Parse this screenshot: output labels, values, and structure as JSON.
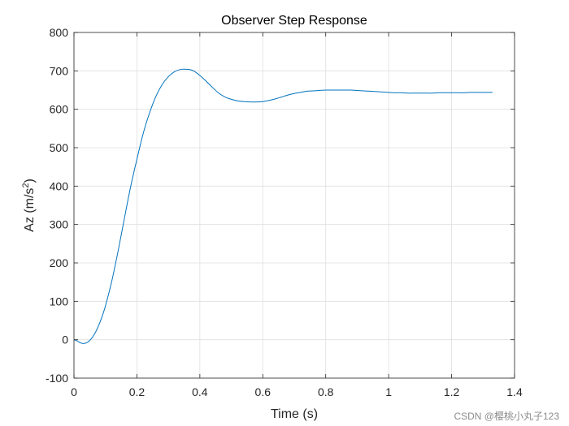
{
  "chart_data": {
    "type": "line",
    "title": "Observer Step Response",
    "xlabel": "Time (s)",
    "ylabel_main": "Az (m/s",
    "ylabel_sup": "2",
    "ylabel_close": ")",
    "xlim": [
      0,
      1.4
    ],
    "ylim": [
      -100,
      800
    ],
    "xticks": [
      0,
      0.2,
      0.4,
      0.6,
      0.8,
      1,
      1.2,
      1.4
    ],
    "xtick_labels": [
      "0",
      "0.2",
      "0.4",
      "0.6",
      "0.8",
      "1",
      "1.2",
      "1.4"
    ],
    "yticks": [
      -100,
      0,
      100,
      200,
      300,
      400,
      500,
      600,
      700,
      800
    ],
    "ytick_labels": [
      "-100",
      "0",
      "100",
      "200",
      "300",
      "400",
      "500",
      "600",
      "700",
      "800"
    ],
    "grid": true,
    "series": [
      {
        "name": "Az",
        "color": "#0072BD",
        "x": [
          0,
          0.01,
          0.02,
          0.03,
          0.04,
          0.05,
          0.06,
          0.07,
          0.08,
          0.09,
          0.1,
          0.12,
          0.14,
          0.16,
          0.18,
          0.2,
          0.22,
          0.24,
          0.26,
          0.28,
          0.3,
          0.32,
          0.34,
          0.36,
          0.37,
          0.38,
          0.4,
          0.42,
          0.44,
          0.46,
          0.48,
          0.5,
          0.52,
          0.54,
          0.56,
          0.58,
          0.6,
          0.62,
          0.64,
          0.66,
          0.68,
          0.7,
          0.72,
          0.74,
          0.76,
          0.78,
          0.8,
          0.82,
          0.84,
          0.86,
          0.88,
          0.9,
          0.92,
          0.94,
          0.96,
          0.98,
          1.0,
          1.02,
          1.04,
          1.06,
          1.08,
          1.1,
          1.12,
          1.14,
          1.16,
          1.18,
          1.2,
          1.22,
          1.24,
          1.26,
          1.28,
          1.3,
          1.32,
          1.33
        ],
        "y": [
          0,
          -3,
          -8,
          -10,
          -8,
          -2,
          8,
          22,
          40,
          62,
          88,
          152,
          230,
          315,
          398,
          470,
          537,
          590,
          633,
          664,
          685,
          698,
          704,
          704,
          703,
          700,
          688,
          673,
          657,
          642,
          632,
          626,
          622,
          620,
          619,
          619,
          620,
          623,
          627,
          632,
          637,
          641,
          644,
          647,
          648,
          649,
          650,
          650,
          650,
          650,
          650,
          649,
          648,
          647,
          646,
          645,
          644,
          643,
          643,
          642,
          642,
          642,
          642,
          642,
          643,
          643,
          643,
          643,
          643,
          644,
          644,
          644,
          644,
          644
        ]
      }
    ]
  },
  "watermark": "CSDN @樱桃小丸子123"
}
